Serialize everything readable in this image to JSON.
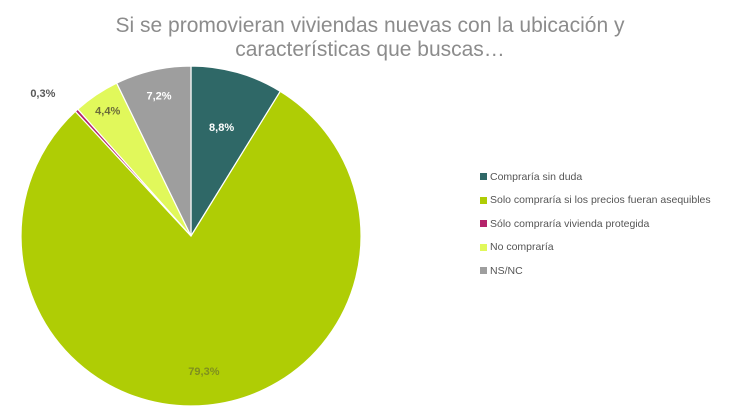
{
  "chart_data": {
    "type": "pie",
    "title_lines": [
      "Si se promovieran viviendas nuevas con la ubicación y",
      "características que buscas…"
    ],
    "slices": [
      {
        "label": "Compraría sin duda",
        "value": 8.8,
        "display": "8,8%",
        "color": "#2f6867",
        "label_color": "#ffffff"
      },
      {
        "label": "Solo compraría si los precios fueran asequibles",
        "value": 79.3,
        "display": "79,3%",
        "color": "#afcd05",
        "label_color": "#7f8f1f"
      },
      {
        "label": "Sólo compraría vivienda protegida",
        "value": 0.3,
        "display": "0,3%",
        "color": "#b4236b",
        "label_color": "#595959"
      },
      {
        "label": "No compraría",
        "value": 4.4,
        "display": "4,4%",
        "color": "#e1f85b",
        "label_color": "#6b6b3a"
      },
      {
        "label": "NS/NC",
        "value": 7.2,
        "display": "7,2%",
        "color": "#9e9e9e",
        "label_color": "#ffffff"
      }
    ],
    "legend_position": "right"
  }
}
